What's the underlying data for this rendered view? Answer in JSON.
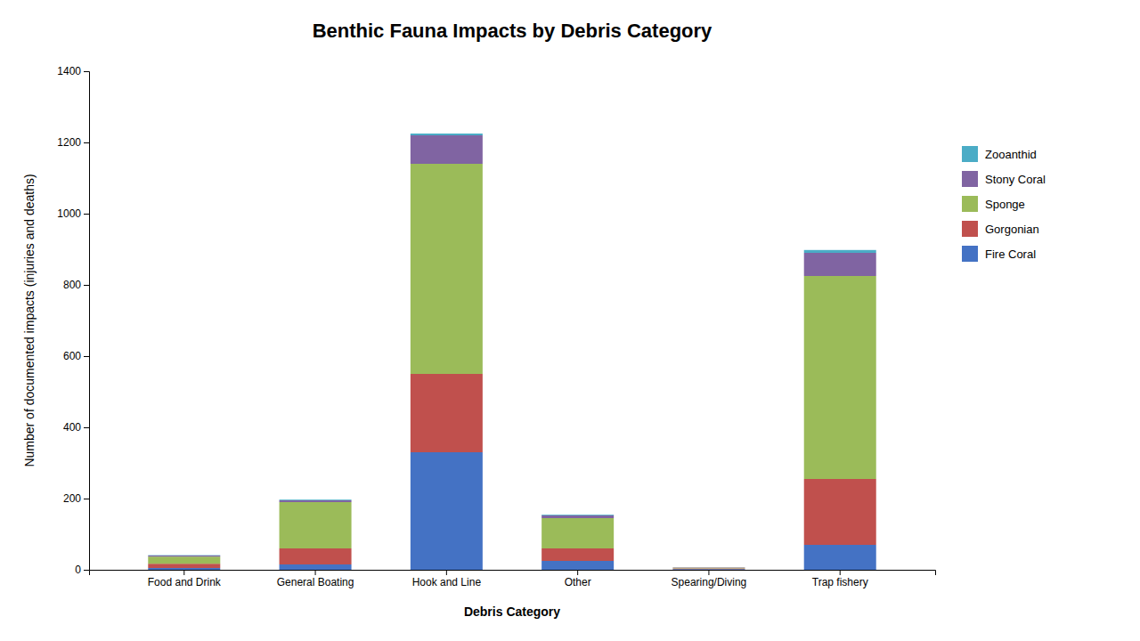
{
  "chart_data": {
    "type": "bar",
    "title": "Benthic Fauna Impacts by Debris Category",
    "xlabel": "Debris Category",
    "ylabel": "Number of documented impacts (injuries and deaths)",
    "categories": [
      "Food and Drink",
      "General Boating",
      "Hook and Line",
      "Other",
      "Spearing/Diving",
      "Trap fishery"
    ],
    "series": [
      {
        "name": "Fire Coral",
        "color": "#4472C4",
        "values": [
          5,
          15,
          330,
          25,
          2,
          70
        ]
      },
      {
        "name": "Gorgonian",
        "color": "#C0504D",
        "values": [
          12,
          45,
          220,
          35,
          2,
          185
        ]
      },
      {
        "name": "Sponge",
        "color": "#9BBB59",
        "values": [
          20,
          130,
          590,
          85,
          2,
          570
        ]
      },
      {
        "name": "Stony Coral",
        "color": "#8064A2",
        "values": [
          3,
          5,
          80,
          8,
          1,
          65
        ]
      },
      {
        "name": "Zooanthid",
        "color": "#4BACC6",
        "values": [
          1,
          2,
          5,
          2,
          0,
          8
        ]
      }
    ],
    "ylim": [
      0,
      1400
    ],
    "yticks": [
      0,
      200,
      400,
      600,
      800,
      1000,
      1200,
      1400
    ],
    "stacked": true,
    "grid": false,
    "legend": "right"
  }
}
